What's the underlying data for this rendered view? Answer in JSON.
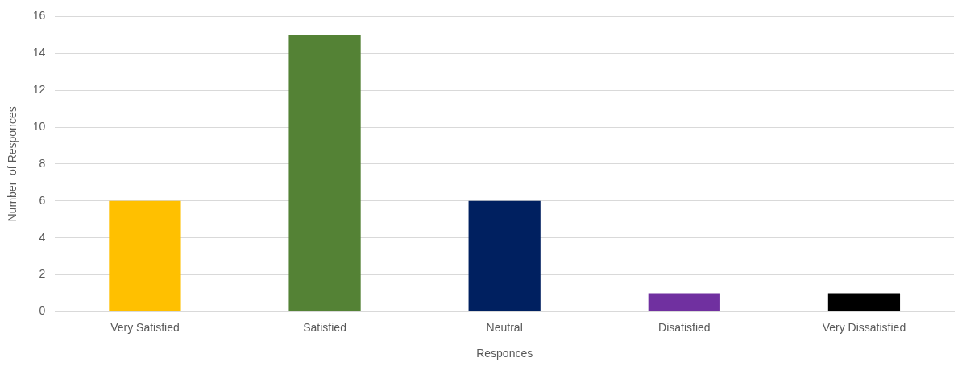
{
  "chart_data": {
    "type": "bar",
    "xlabel": "Responces",
    "ylabel": "Number  of Responces",
    "categories": [
      "Very Satisfied",
      "Satisfied",
      "Neutral",
      "Disatisfied",
      "Very Dissatisfied"
    ],
    "values": [
      6,
      15,
      6,
      1,
      1
    ],
    "colors": [
      "#ffc000",
      "#548235",
      "#002060",
      "#7030a0",
      "#000000"
    ],
    "ylim": [
      0,
      16
    ],
    "yticks": [
      0,
      2,
      4,
      6,
      8,
      10,
      12,
      14,
      16
    ],
    "grid": "y",
    "legend": false
  }
}
